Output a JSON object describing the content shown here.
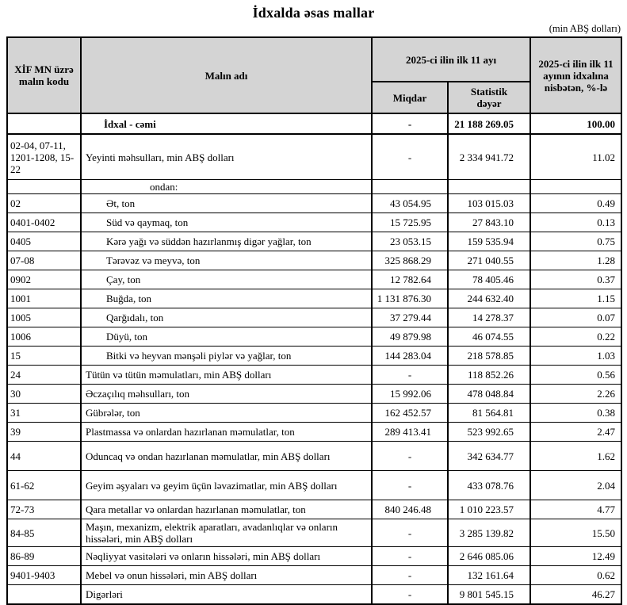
{
  "page": {
    "title": "İdxalda əsas mallar",
    "unit_note": "(min ABŞ dolları)"
  },
  "table": {
    "header": {
      "col_code": "XİF MN üzrə malın kodu",
      "col_name": "Malın adı",
      "col_period": "2025-ci ilin ilk 11 ayı",
      "col_qty": "Miqdar",
      "col_value": "Statistik dəyər",
      "col_pct": "2025-ci ilin ilk 11 ayının idxalına nisbətən, %-lə"
    },
    "rows": [
      {
        "code": "",
        "name": "İdxal - cəmi",
        "qty": "-",
        "value": "21 188 269.05",
        "pct": "100.00",
        "cls": "row-total"
      },
      {
        "code": "02-04, 07-11, 1201-1208, 15-22",
        "name": "Yeyinti məhsulları, min ABŞ dolları",
        "qty": "-",
        "value": "2 334 941.72",
        "pct": "11.02",
        "cls": "row-multi"
      },
      {
        "code": "",
        "name": "ondan:",
        "qty": "",
        "value": "",
        "pct": "",
        "cls": "row-subhead"
      },
      {
        "code": "02",
        "name": "Ət, ton",
        "qty": "43 054.95",
        "value": "103 015.03",
        "pct": "0.49",
        "cls": "row-sub"
      },
      {
        "code": "0401-0402",
        "name": "Süd və qaymaq, ton",
        "qty": "15 725.95",
        "value": "27 843.10",
        "pct": "0.13",
        "cls": "row-sub"
      },
      {
        "code": "0405",
        "name": "Kərə yağı və süddən hazırlanmış digər yağlar, ton",
        "qty": "23 053.15",
        "value": "159 535.94",
        "pct": "0.75",
        "cls": "row-sub"
      },
      {
        "code": "07-08",
        "name": "Tərəvəz və meyvə, ton",
        "qty": "325 868.29",
        "value": "271 040.55",
        "pct": "1.28",
        "cls": "row-sub"
      },
      {
        "code": "0902",
        "name": "Çay, ton",
        "qty": "12 782.64",
        "value": "78 405.46",
        "pct": "0.37",
        "cls": "row-sub"
      },
      {
        "code": "1001",
        "name": "Buğda, ton",
        "qty": "1 131 876.30",
        "value": "244 632.40",
        "pct": "1.15",
        "cls": "row-sub"
      },
      {
        "code": "1005",
        "name": "Qarğıdalı, ton",
        "qty": "37 279.44",
        "value": "14 278.37",
        "pct": "0.07",
        "cls": "row-sub"
      },
      {
        "code": "1006",
        "name": "Düyü, ton",
        "qty": "49 879.98",
        "value": "46 074.55",
        "pct": "0.22",
        "cls": "row-sub"
      },
      {
        "code": "15",
        "name": "Bitki və heyvan mənşəli piylər və yağlar, ton",
        "qty": "144 283.04",
        "value": "218 578.85",
        "pct": "1.03",
        "cls": "row-sub"
      },
      {
        "code": "24",
        "name": "Tütün və tütün məmulatları, min ABŞ dolları",
        "qty": "-",
        "value": "118 852.26",
        "pct": "0.56",
        "cls": ""
      },
      {
        "code": "30",
        "name": "Əczaçılıq məhsulları, ton",
        "qty": "15 992.06",
        "value": "478 048.84",
        "pct": "2.26",
        "cls": ""
      },
      {
        "code": "31",
        "name": "Gübrələr, ton",
        "qty": "162 452.57",
        "value": "81 564.81",
        "pct": "0.38",
        "cls": ""
      },
      {
        "code": "39",
        "name": "Plastmassa və onlardan hazırlanan məmulatlar, ton",
        "qty": "289 413.41",
        "value": "523 992.65",
        "pct": "2.47",
        "cls": ""
      },
      {
        "code": "44",
        "name": "Oduncaq və ondan hazırlanan məmulatlar, min ABŞ dolları",
        "qty": "-",
        "value": "342 634.77",
        "pct": "1.62",
        "cls": "row-tall"
      },
      {
        "code": "61-62",
        "name": "Geyim əşyaları və geyim üçün ləvazimatlar, min ABŞ dolları",
        "qty": "-",
        "value": "433 078.76",
        "pct": "2.04",
        "cls": "row-tall"
      },
      {
        "code": "72-73",
        "name": "Qara metallar və onlardan hazırlanan məmulatlar, ton",
        "qty": "840 246.48",
        "value": "1 010 223.57",
        "pct": "4.77",
        "cls": ""
      },
      {
        "code": "84-85",
        "name": "Maşın, mexanizm, elektrik aparatları, avadanlıqlar və onların hissələri, min ABŞ dolları",
        "qty": "-",
        "value": "3 285 139.82",
        "pct": "15.50",
        "cls": ""
      },
      {
        "code": "86-89",
        "name": "Nəqliyyat vasitələri və onların hissələri, min ABŞ dolları",
        "qty": "-",
        "value": "2 646 085.06",
        "pct": "12.49",
        "cls": ""
      },
      {
        "code": "9401-9403",
        "name": "Mebel və onun hissələri, min ABŞ dolları",
        "qty": "-",
        "value": "132 161.64",
        "pct": "0.62",
        "cls": ""
      },
      {
        "code": "",
        "name": "Digərləri",
        "qty": "-",
        "value": "9 801 545.15",
        "pct": "46.27",
        "cls": ""
      }
    ]
  }
}
